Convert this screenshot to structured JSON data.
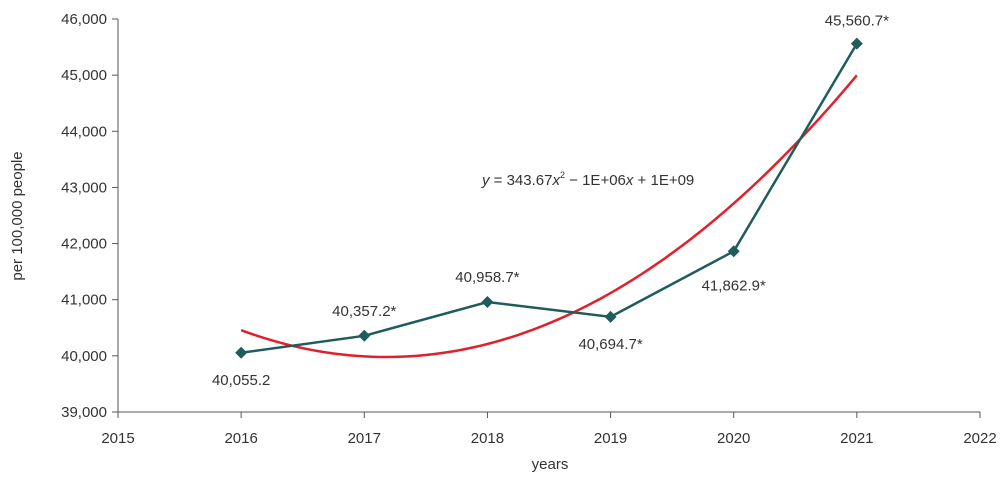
{
  "chart_data": {
    "type": "line",
    "xlabel": "years",
    "ylabel": "per 100,000 people",
    "xlim": [
      2015,
      2022
    ],
    "ylim": [
      39000,
      46000
    ],
    "x_ticks": [
      "2015",
      "2016",
      "2017",
      "2018",
      "2019",
      "2020",
      "2021",
      "2022"
    ],
    "y_ticks": [
      "39,000",
      "40,000",
      "41,000",
      "42,000",
      "43,000",
      "44,000",
      "45,000",
      "46,000"
    ],
    "series": [
      {
        "x": [
          2016,
          2017,
          2018,
          2019,
          2020,
          2021
        ],
        "values": [
          40055.2,
          40357.2,
          40958.7,
          40694.7,
          41862.9,
          45560.7
        ],
        "labels": [
          "40,055.2",
          "40,357.2*",
          "40,958.7*",
          "40,694.7*",
          "41,862.9*",
          "45,560.7*"
        ],
        "color": "#1f5c5c",
        "marker": "diamond"
      }
    ],
    "trendline": {
      "type": "polynomial",
      "degree": 2,
      "x_range": [
        2016,
        2021
      ],
      "color": "#e0202a",
      "equation": {
        "y": "y",
        "eq1": " = 343.67",
        "x1": "x",
        "exp": "2",
        "eq2": " − 1E+06",
        "x2": "x",
        "eq3": " + 1E+09"
      }
    },
    "grid": false,
    "legend": "none"
  }
}
